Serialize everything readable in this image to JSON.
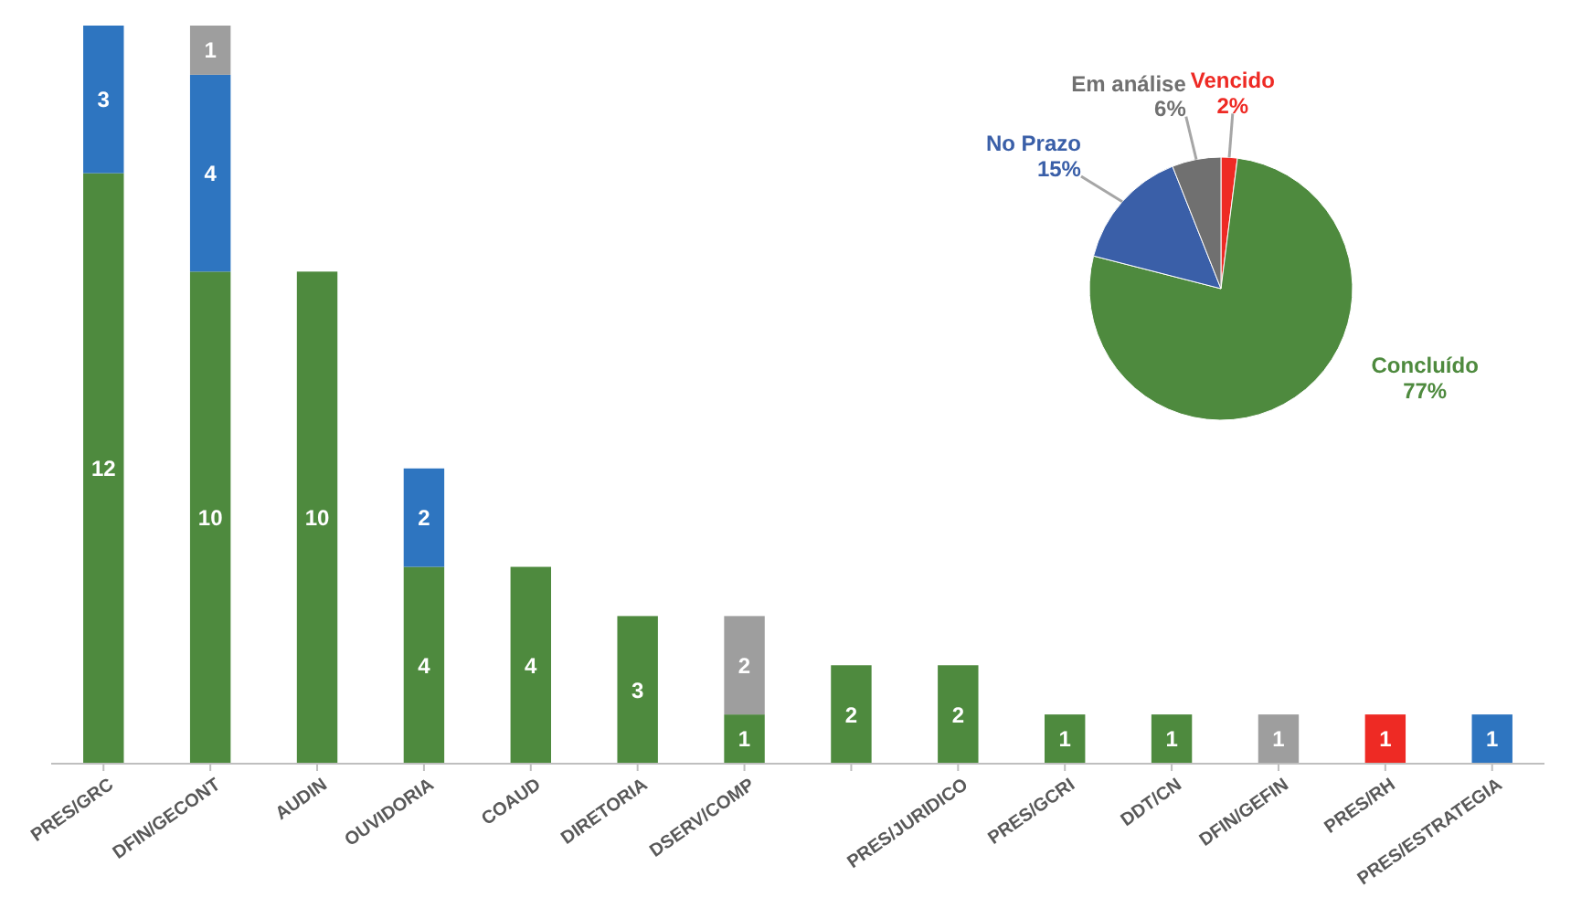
{
  "chart_data": [
    {
      "type": "bar",
      "stacked": true,
      "data_labels": true,
      "categories": [
        "PRES/GRC",
        "DFIN/GECONT",
        "AUDIN",
        "OUVIDORIA",
        "COAUD",
        "DIRETORIA",
        "DSERV/COMP",
        null,
        "PRES/JURIDICO",
        "PRES/GCRI",
        "DDT/CN",
        "DFIN/GEFIN",
        "PRES/RH",
        "PRES/ESTRATEGIA"
      ],
      "series": [
        {
          "color": "#4e8a3e",
          "values": [
            12,
            10,
            10,
            4,
            4,
            3,
            1,
            2,
            2,
            1,
            1,
            null,
            null,
            null
          ]
        },
        {
          "color": "#2e75c0",
          "values": [
            3,
            4,
            null,
            2,
            null,
            null,
            null,
            null,
            null,
            null,
            null,
            null,
            null,
            1
          ]
        },
        {
          "color": "#9e9e9e",
          "values": [
            null,
            1,
            null,
            null,
            null,
            null,
            2,
            null,
            null,
            null,
            null,
            1,
            null,
            null
          ]
        },
        {
          "color": "#ee2a24",
          "values": [
            null,
            null,
            null,
            null,
            null,
            null,
            null,
            null,
            null,
            null,
            null,
            null,
            1,
            null
          ]
        }
      ]
    },
    {
      "type": "pie",
      "categories": [
        "Vencido",
        "Concluído",
        "No Prazo",
        "Em análise"
      ],
      "values": [
        2,
        77,
        15,
        6
      ],
      "colors": [
        "#ee2a24",
        "#4e8a3e",
        "#3a5fa8",
        "#707070"
      ],
      "value_labels": [
        "2%",
        "77%",
        "15%",
        "6%"
      ]
    }
  ]
}
